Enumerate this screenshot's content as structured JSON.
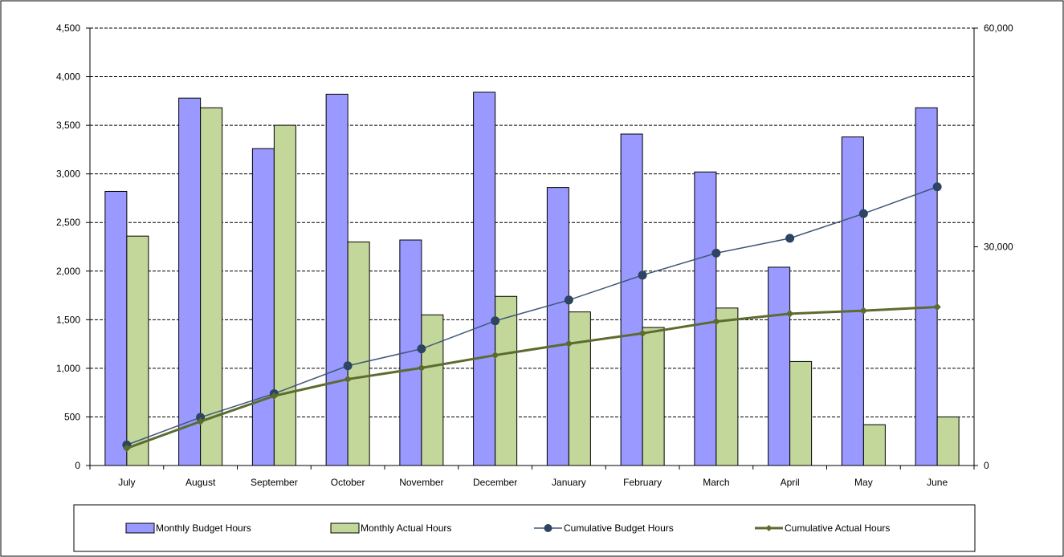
{
  "chart_data": {
    "type": "bar",
    "title": "",
    "xlabel": "",
    "ylabel": "",
    "categories": [
      "July",
      "August",
      "September",
      "October",
      "November",
      "December",
      "January",
      "February",
      "March",
      "April",
      "May",
      "June"
    ],
    "y_left": {
      "min": 0,
      "max": 4500,
      "ticks": [
        0,
        500,
        1000,
        1500,
        2000,
        2500,
        3000,
        3500,
        4000,
        4500
      ],
      "tick_labels": [
        "0",
        "500",
        "1,000",
        "1,500",
        "2,000",
        "2,500",
        "3,000",
        "3,500",
        "4,000",
        "4,500"
      ]
    },
    "y_right": {
      "min": 0,
      "max": 60000,
      "ticks": [
        0,
        30000,
        60000
      ],
      "tick_labels": [
        "0",
        "30,000",
        "60,000"
      ]
    },
    "grid": true,
    "legend_position": "bottom",
    "series": [
      {
        "name": "Monthly Budget Hours",
        "kind": "bar",
        "axis": "left",
        "color": "#9999ff",
        "values": [
          2820,
          3780,
          3260,
          3820,
          2320,
          3840,
          2860,
          3410,
          3020,
          2040,
          3380,
          3680
        ]
      },
      {
        "name": "Monthly Actual Hours",
        "kind": "bar",
        "axis": "left",
        "color": "#c4d79b",
        "values": [
          2360,
          3680,
          3500,
          2300,
          1550,
          1740,
          1580,
          1420,
          1620,
          1070,
          420,
          500
        ]
      },
      {
        "name": "Cumulative Budget Hours",
        "kind": "line",
        "axis": "right",
        "color": "#3f5876",
        "values": [
          2820,
          6600,
          9860,
          13680,
          16000,
          19840,
          22700,
          26110,
          29130,
          31170,
          34550,
          38230
        ]
      },
      {
        "name": "Cumulative Actual Hours",
        "kind": "line",
        "axis": "right",
        "color": "#5c6b2f",
        "values": [
          2360,
          6040,
          9540,
          11840,
          13390,
          15130,
          16710,
          18130,
          19750,
          20820,
          21240,
          21740
        ]
      }
    ]
  }
}
